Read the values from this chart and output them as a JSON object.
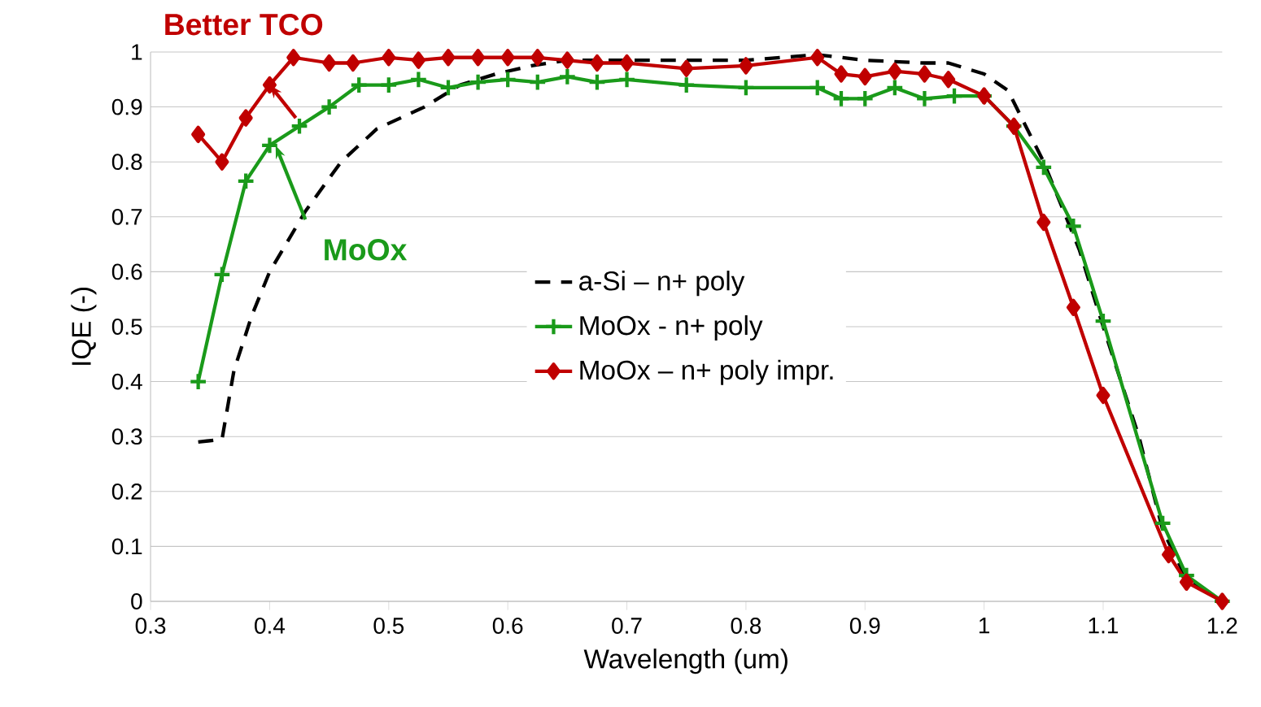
{
  "chart_data": {
    "type": "line",
    "xlabel": "Wavelength (um)",
    "ylabel": "IQE (-)",
    "xlim": [
      0.3,
      1.2
    ],
    "xticks": [
      0.3,
      0.4,
      0.5,
      0.6,
      0.7,
      0.8,
      0.9,
      1,
      1.1,
      1.2
    ],
    "ylim": [
      0,
      1
    ],
    "yticks": [
      0,
      0.1,
      0.2,
      0.3,
      0.4,
      0.5,
      0.6,
      0.7,
      0.8,
      0.9,
      1
    ],
    "grid": "y",
    "legend": "center",
    "series": [
      {
        "name": "a-Si – n+ poly",
        "color": "#000000",
        "line_style": "dashed",
        "marker": "none",
        "x": [
          0.34,
          0.36,
          0.37,
          0.385,
          0.4,
          0.43,
          0.46,
          0.49,
          0.53,
          0.56,
          0.59,
          0.62,
          0.65,
          0.7,
          0.75,
          0.8,
          0.86,
          0.9,
          0.95,
          0.97,
          1.0,
          1.02,
          1.05,
          1.08,
          1.1,
          1.13,
          1.15,
          1.17,
          1.2
        ],
        "values": [
          0.29,
          0.295,
          0.42,
          0.52,
          0.6,
          0.71,
          0.8,
          0.86,
          0.9,
          0.94,
          0.96,
          0.975,
          0.985,
          0.985,
          0.985,
          0.985,
          0.995,
          0.985,
          0.98,
          0.98,
          0.96,
          0.93,
          0.8,
          0.64,
          0.5,
          0.3,
          0.13,
          0.04,
          0
        ]
      },
      {
        "name": "MoOx - n+ poly",
        "color": "#1a9a1a",
        "line_style": "solid",
        "marker": "cross",
        "x": [
          0.34,
          0.36,
          0.38,
          0.4,
          0.425,
          0.45,
          0.475,
          0.5,
          0.525,
          0.55,
          0.575,
          0.6,
          0.625,
          0.65,
          0.675,
          0.7,
          0.75,
          0.8,
          0.86,
          0.88,
          0.9,
          0.925,
          0.95,
          0.975,
          1.0,
          1.025,
          1.05,
          1.075,
          1.1,
          1.15,
          1.17,
          1.2
        ],
        "values": [
          0.4,
          0.595,
          0.765,
          0.83,
          0.865,
          0.9,
          0.94,
          0.94,
          0.95,
          0.935,
          0.945,
          0.95,
          0.945,
          0.955,
          0.945,
          0.95,
          0.94,
          0.935,
          0.935,
          0.915,
          0.915,
          0.935,
          0.915,
          0.92,
          0.92,
          0.865,
          0.79,
          0.683,
          0.51,
          0.142,
          0.047,
          0
        ]
      },
      {
        "name": "MoOx – n+ poly impr.",
        "color": "#c00000",
        "line_style": "solid",
        "marker": "diamond",
        "x": [
          0.34,
          0.36,
          0.38,
          0.4,
          0.42,
          0.45,
          0.47,
          0.5,
          0.525,
          0.55,
          0.575,
          0.6,
          0.625,
          0.65,
          0.675,
          0.7,
          0.75,
          0.8,
          0.86,
          0.88,
          0.9,
          0.925,
          0.95,
          0.97,
          1.0,
          1.025,
          1.05,
          1.075,
          1.1,
          1.155,
          1.17,
          1.2
        ],
        "values": [
          0.85,
          0.8,
          0.88,
          0.94,
          0.99,
          0.98,
          0.98,
          0.99,
          0.985,
          0.99,
          0.99,
          0.99,
          0.99,
          0.985,
          0.98,
          0.98,
          0.97,
          0.975,
          0.99,
          0.96,
          0.955,
          0.965,
          0.96,
          0.95,
          0.92,
          0.865,
          0.69,
          0.535,
          0.375,
          0.085,
          0.035,
          0
        ]
      }
    ],
    "annotations": [
      {
        "text": "Better TCO",
        "x": 0.4,
        "y": 0.94
      },
      {
        "text": "MoOx",
        "x": 0.405,
        "y": 0.83
      }
    ]
  }
}
